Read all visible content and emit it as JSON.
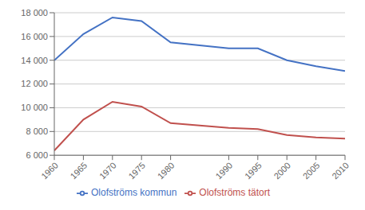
{
  "chart_data": {
    "type": "line",
    "x": [
      1960,
      1965,
      1970,
      1975,
      1980,
      1990,
      1995,
      2000,
      2005,
      2010
    ],
    "series": [
      {
        "name": "Olofströms kommun",
        "color": "#4472C4",
        "values": [
          14000,
          16200,
          17600,
          17300,
          15500,
          15000,
          15000,
          14000,
          13500,
          13100
        ]
      },
      {
        "name": "Olofströms tätort",
        "color": "#C0504D",
        "values": [
          6400,
          9000,
          10500,
          10100,
          8700,
          8300,
          8200,
          7700,
          7500,
          7400
        ]
      }
    ],
    "xlim": [
      1960,
      2010
    ],
    "xticks": [
      1960,
      1965,
      1970,
      1975,
      1980,
      1990,
      1995,
      2000,
      2005,
      2010
    ],
    "ylim": [
      6000,
      18000
    ],
    "yticks": [
      {
        "value": 6000,
        "label": "6 000"
      },
      {
        "value": 8000,
        "label": "8 000"
      },
      {
        "value": 10000,
        "label": "10 000"
      },
      {
        "value": 12000,
        "label": "12 000"
      },
      {
        "value": 14000,
        "label": "14 000"
      },
      {
        "value": 16000,
        "label": "16 000"
      },
      {
        "value": 18000,
        "label": "18 000"
      }
    ],
    "grid": true,
    "legend": "bottom"
  }
}
